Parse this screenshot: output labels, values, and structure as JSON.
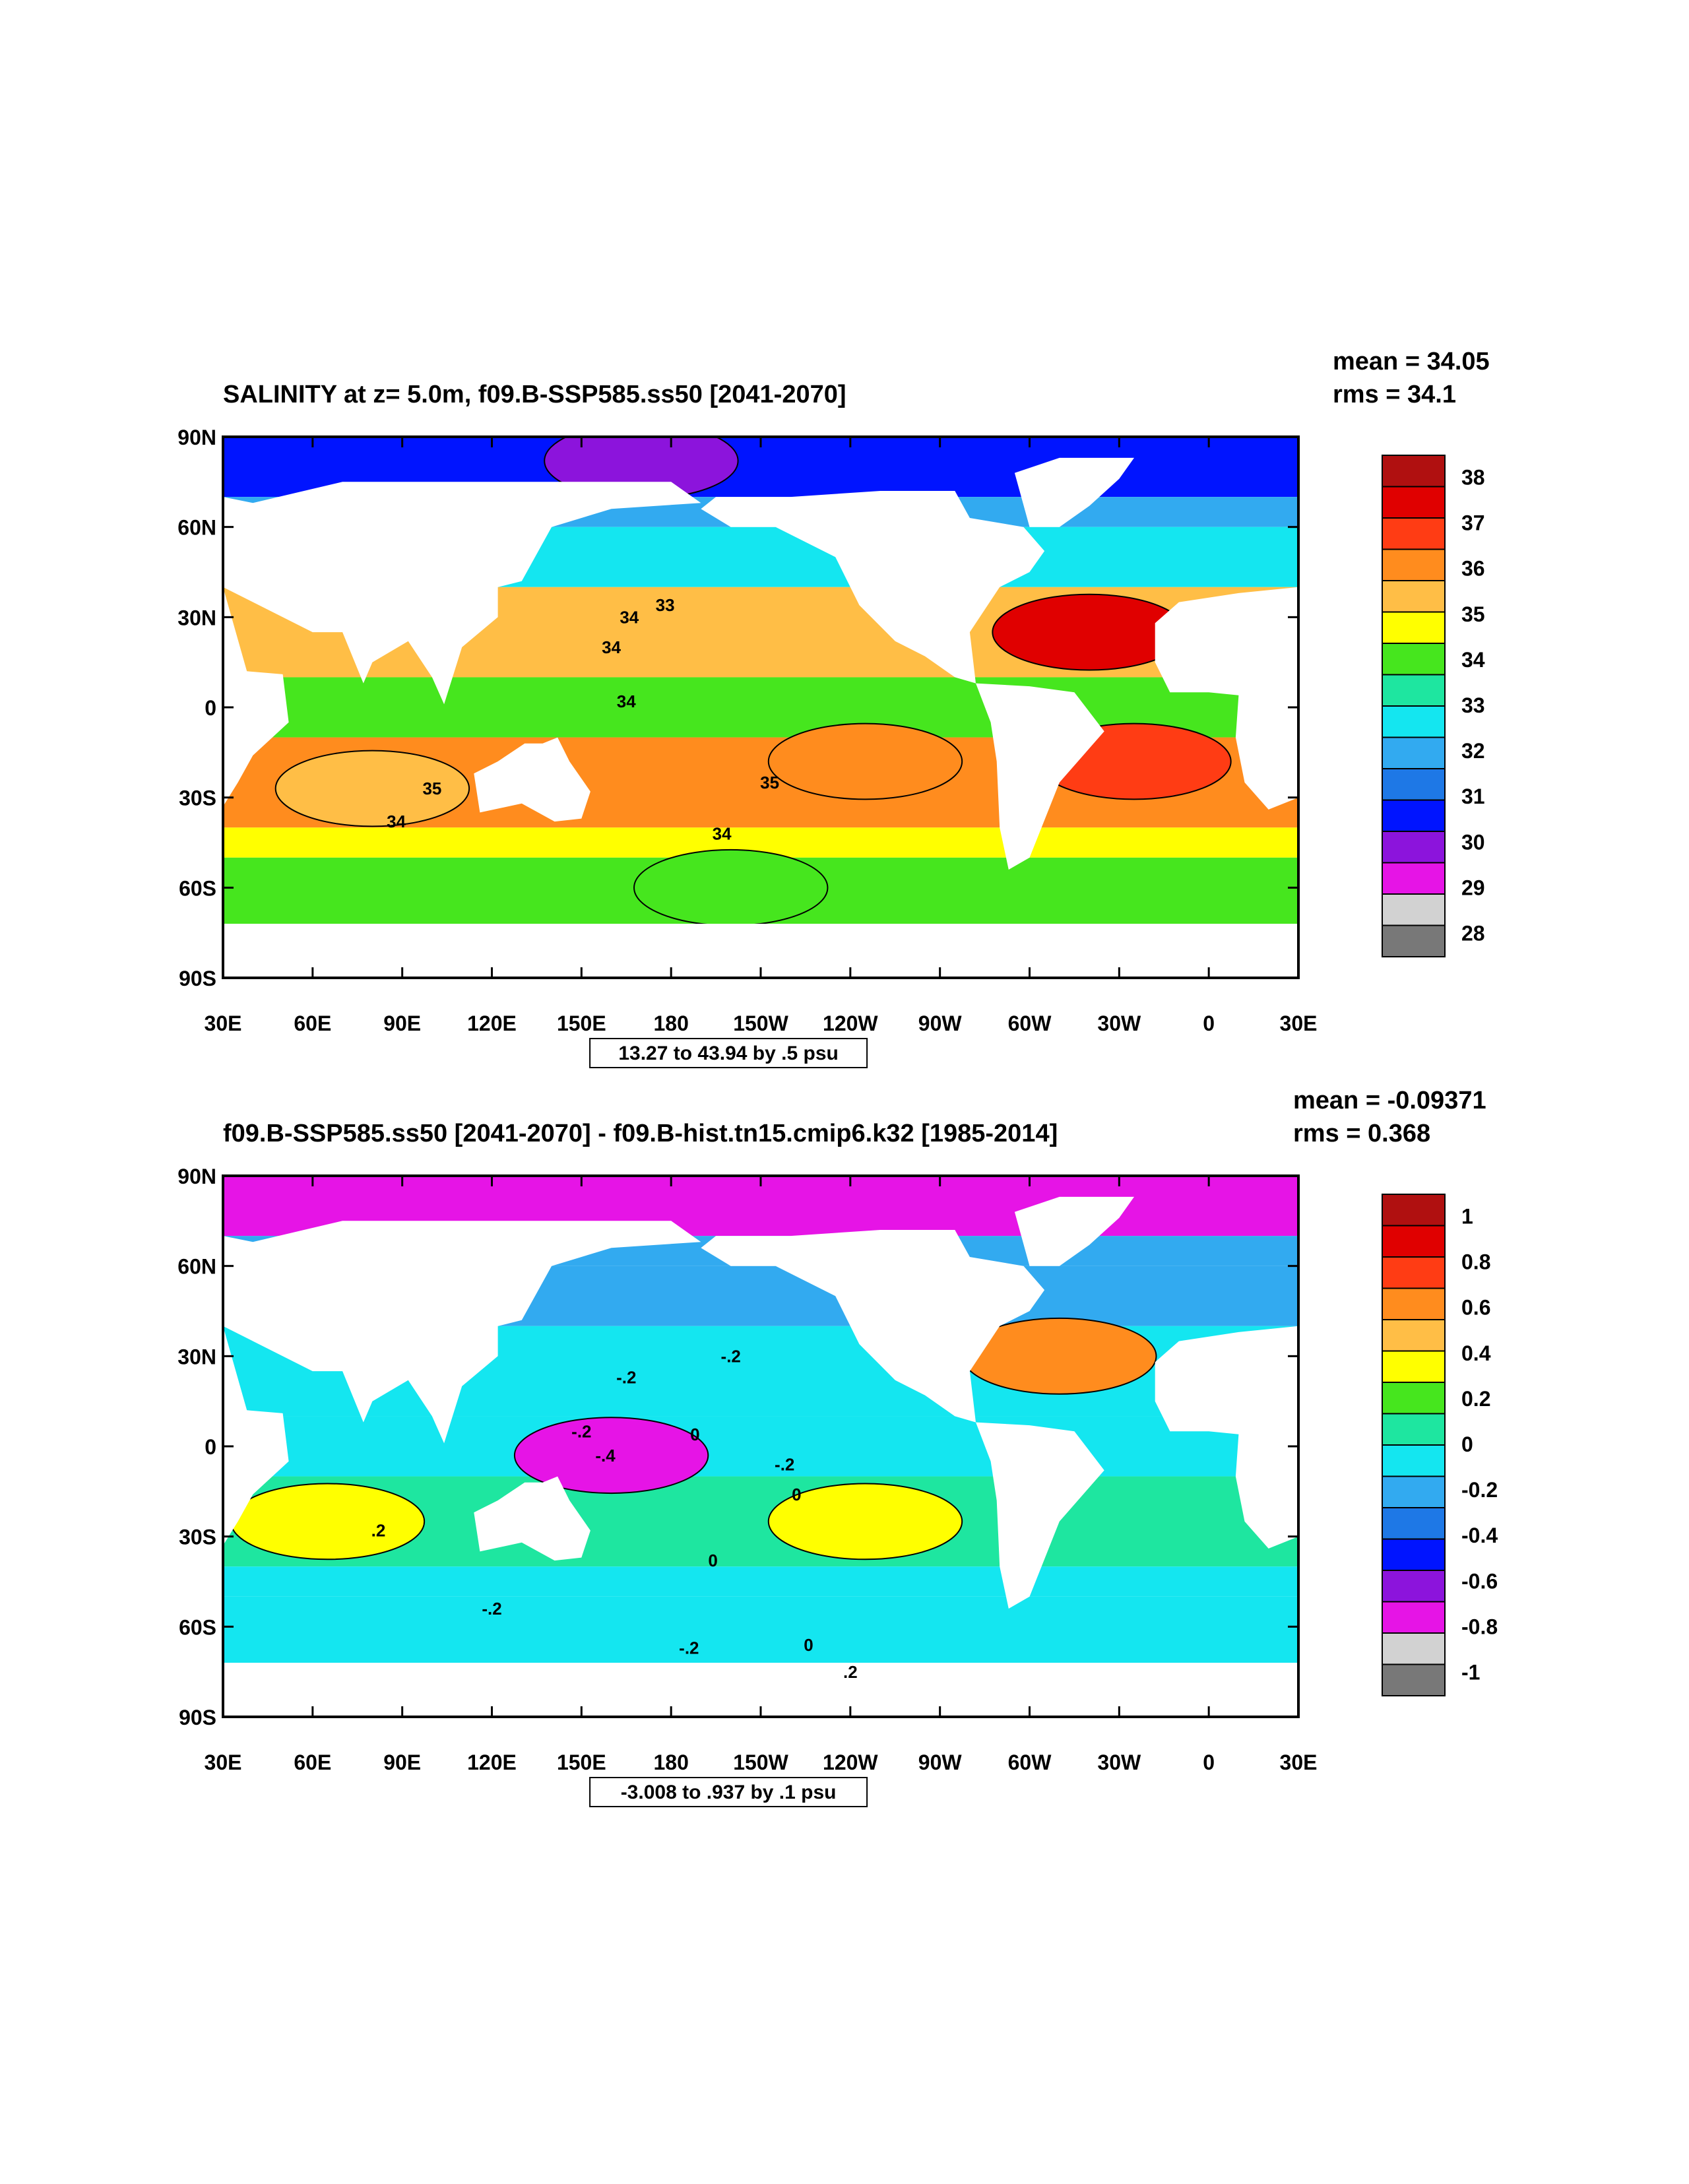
{
  "chart_data": [
    {
      "type": "heatmap",
      "title": "SALINITY at z=   5.0m, f09.B-SSP585.ss50 [2041-2070]",
      "stats": {
        "mean": "mean = 34.05",
        "rms": "rms = 34.1"
      },
      "range_note": "13.27 to 43.94 by .5 psu",
      "x_ticks": [
        "30E",
        "60E",
        "90E",
        "120E",
        "150E",
        "180",
        "150W",
        "120W",
        "90W",
        "60W",
        "30W",
        "0",
        "30E"
      ],
      "y_ticks": [
        "90N",
        "60N",
        "30N",
        "0",
        "30S",
        "60S",
        "90S"
      ],
      "xlim_lon": [
        30,
        390
      ],
      "ylim_lat": [
        -90,
        90
      ],
      "legend_levels": [
        "38",
        "37",
        "36",
        "35",
        "34",
        "33",
        "32",
        "31",
        "30",
        "29",
        "28"
      ],
      "legend_colors": [
        "#b01010",
        "#e00000",
        "#ff3c14",
        "#ff8c1e",
        "#ffbe46",
        "#ffff00",
        "#46e61e",
        "#1ee6a0",
        "#14e6f0",
        "#32aaf0",
        "#1e78e6",
        "#0014ff",
        "#8c14dc",
        "#e614e6",
        "#d2d2d2",
        "#787878"
      ],
      "contour_labels": [
        "34",
        "33",
        "34",
        "34",
        "35",
        "35",
        "34",
        "34"
      ],
      "regions": [
        {
          "name": "north-atlantic-max",
          "lon": 320,
          "lat": 25,
          "value": 37.5
        },
        {
          "name": "south-pacific-max",
          "lon": 245,
          "lat": -18,
          "value": 36.2
        },
        {
          "name": "south-atlantic-max",
          "lon": 335,
          "lat": -18,
          "value": 37
        },
        {
          "name": "indian-ocean-south",
          "lon": 80,
          "lat": -27,
          "value": 35.3
        },
        {
          "name": "arctic",
          "lon": 170,
          "lat": 82,
          "value": 30.5
        },
        {
          "name": "southern-ocean",
          "lon": 200,
          "lat": -60,
          "value": 33.8
        }
      ]
    },
    {
      "type": "heatmap",
      "title": "f09.B-SSP585.ss50 [2041-2070] - f09.B-hist.tn15.cmip6.k32 [1985-2014]",
      "stats": {
        "mean": "mean = -0.09371",
        "rms": "rms = 0.368"
      },
      "range_note": "-3.008 to .937 by .1 psu",
      "x_ticks": [
        "30E",
        "60E",
        "90E",
        "120E",
        "150E",
        "180",
        "150W",
        "120W",
        "90W",
        "60W",
        "30W",
        "0",
        "30E"
      ],
      "y_ticks": [
        "90N",
        "60N",
        "30N",
        "0",
        "30S",
        "60S",
        "90S"
      ],
      "xlim_lon": [
        30,
        390
      ],
      "ylim_lat": [
        -90,
        90
      ],
      "legend_levels": [
        "1",
        "0.8",
        "0.6",
        "0.4",
        "0.2",
        "0",
        "-0.2",
        "-0.4",
        "-0.6",
        "-0.8",
        "-1"
      ],
      "legend_colors": [
        "#b01010",
        "#e00000",
        "#ff3c14",
        "#ff8c1e",
        "#ffbe46",
        "#ffff00",
        "#46e61e",
        "#1ee6a0",
        "#14e6f0",
        "#32aaf0",
        "#1e78e6",
        "#0014ff",
        "#8c14dc",
        "#e614e6",
        "#d2d2d2",
        "#787878"
      ],
      "contour_labels": [
        ".2",
        "-.2",
        "-.2",
        "-.2",
        "-.4",
        "0",
        "-.2",
        "0",
        "0",
        ".2",
        "-.2",
        "-.2",
        "0"
      ],
      "regions": [
        {
          "name": "north-atlantic-increase",
          "lon": 310,
          "lat": 30,
          "value": 0.6
        },
        {
          "name": "west-pacific-freshening",
          "lon": 160,
          "lat": -3,
          "value": -0.7
        },
        {
          "name": "south-pacific-increase",
          "lon": 245,
          "lat": -25,
          "value": 0.3
        },
        {
          "name": "indian-ocean-south",
          "lon": 65,
          "lat": -25,
          "value": 0.3
        }
      ]
    }
  ]
}
